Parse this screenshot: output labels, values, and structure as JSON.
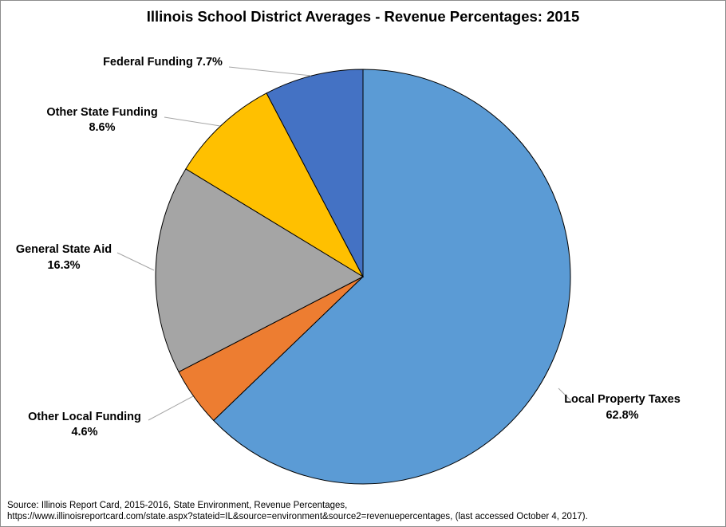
{
  "chart_data": {
    "type": "pie",
    "title": "Illinois School District Averages - Revenue Percentages: 2015",
    "start_angle_deg": 0,
    "direction": "clockwise",
    "slices": [
      {
        "name": "Local Property Taxes",
        "value": 62.8,
        "value_label": "62.8%",
        "color": "#5B9BD5"
      },
      {
        "name": "Other Local Funding",
        "value": 4.6,
        "value_label": "4.6%",
        "color": "#ED7D31"
      },
      {
        "name": "General State Aid",
        "value": 16.3,
        "value_label": "16.3%",
        "color": "#A5A5A5"
      },
      {
        "name": "Other State Funding",
        "value": 8.6,
        "value_label": "8.6%",
        "color": "#FFC000"
      },
      {
        "name": "Federal Funding",
        "value": 7.7,
        "value_label": "7.7%",
        "color": "#4472C4"
      }
    ]
  },
  "source": {
    "line1": "Source: Illinois Report Card, 2015-2016, State Environment, Revenue Percentages,",
    "line2": "https://www.illinoisreportcard.com/state.aspx?stateid=IL&source=environment&source2=revenuepercentages, (last accessed October 4, 2017)."
  }
}
